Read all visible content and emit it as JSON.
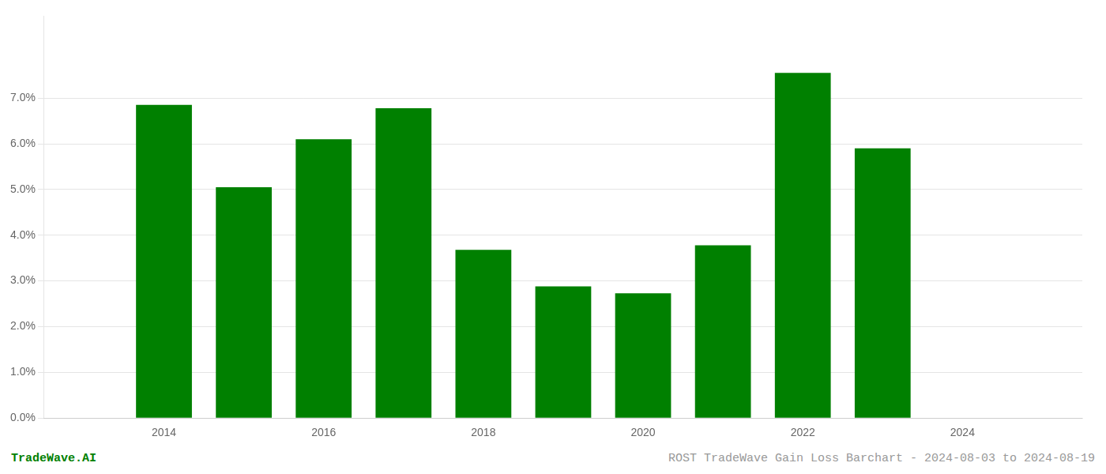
{
  "chart_data": {
    "type": "bar",
    "x": [
      2014,
      2015,
      2016,
      2017,
      2018,
      2019,
      2020,
      2021,
      2022,
      2023
    ],
    "values": [
      0.0685,
      0.0505,
      0.061,
      0.0678,
      0.0368,
      0.0288,
      0.0273,
      0.0378,
      0.0755,
      0.059
    ],
    "color": "#008000",
    "xlim": [
      2012.5,
      2025.5
    ],
    "xticks": [
      2014,
      2016,
      2018,
      2020,
      2022,
      2024
    ],
    "ylim": [
      0,
      0.088
    ],
    "yticks": [
      {
        "value": 0.0,
        "label": "0.0%"
      },
      {
        "value": 0.01,
        "label": "1.0%"
      },
      {
        "value": 0.02,
        "label": "2.0%"
      },
      {
        "value": 0.03,
        "label": "3.0%"
      },
      {
        "value": 0.04,
        "label": "4.0%"
      },
      {
        "value": 0.05,
        "label": "5.0%"
      },
      {
        "value": 0.06,
        "label": "6.0%"
      },
      {
        "value": 0.07,
        "label": "7.0%"
      }
    ],
    "grid": true,
    "annotations": [
      "TradeWave.AI",
      "ROST TradeWave Gain Loss Barchart - 2024-08-03 to 2024-08-19"
    ]
  }
}
